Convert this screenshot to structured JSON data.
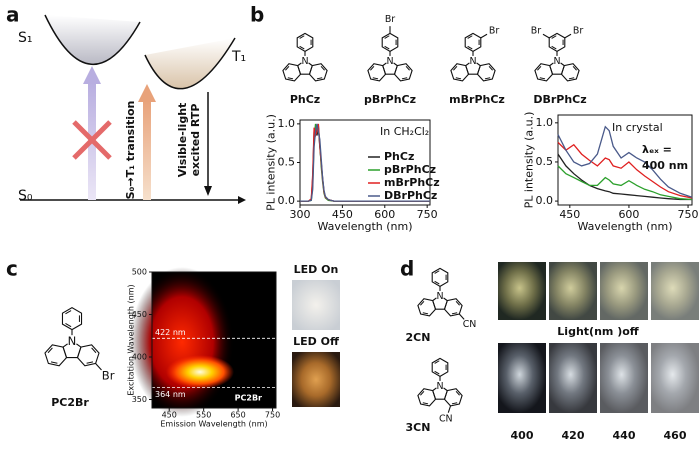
{
  "panel_labels": {
    "a": "a",
    "b": "b",
    "c": "c",
    "d": "d"
  },
  "atom_label": "N",
  "panel_a": {
    "s1": "S₁",
    "t1": "T₁",
    "s0": "S₀",
    "transition": "S₀→T₁ transition",
    "rtp": [
      "Visible-light",
      "excited RTP"
    ]
  },
  "panel_b": {
    "molecules": [
      {
        "name": "PhCz",
        "substituents": []
      },
      {
        "name": "pBrPhCz",
        "substituents": [
          "Br"
        ]
      },
      {
        "name": "mBrPhCz",
        "substituents": [
          "Br"
        ]
      },
      {
        "name": "DBrPhCz",
        "substituents": [
          "Br",
          "Br"
        ]
      }
    ]
  },
  "panel_c": {
    "molecule": {
      "name": "PC2Br",
      "substituents": [
        "Br"
      ]
    },
    "photo_labels": [
      "LED On",
      "LED Off"
    ]
  },
  "panel_d": {
    "molecules": [
      {
        "name": "2CN",
        "substituents": [
          "CN"
        ]
      },
      {
        "name": "3CN",
        "substituents": [
          "CN"
        ]
      }
    ],
    "caption": "Light(nm )off",
    "wavelengths": [
      "400",
      "420",
      "440",
      "460"
    ]
  },
  "chart_data": [
    {
      "type": "line",
      "y_label": "PL intensity (a.u.)",
      "x_label": "Wavelength (nm)",
      "annotations": [
        "In CH₂Cl₂"
      ],
      "xlim": [
        300,
        760
      ],
      "xticks": [
        300,
        450,
        600,
        750
      ],
      "ylim": [
        -0.05,
        1.05
      ],
      "yticks": [
        {
          "value": 0,
          "label": "0.0"
        },
        {
          "value": 0.5,
          "label": "0.5"
        },
        {
          "value": 1,
          "label": "1.0"
        }
      ],
      "legend": "lower right",
      "x": [
        300,
        330,
        340,
        345,
        350,
        355,
        360,
        365,
        370,
        375,
        380,
        385,
        390,
        400,
        420,
        450,
        500,
        600,
        760
      ],
      "series": [
        {
          "name": "PhCz",
          "color": "#222222",
          "values": [
            0,
            0,
            0.02,
            0.3,
            0.9,
            0.95,
            0.85,
            0.97,
            0.7,
            0.5,
            0.3,
            0.12,
            0.05,
            0.02,
            0,
            0,
            0,
            0,
            0
          ]
        },
        {
          "name": "pBrPhCz",
          "color": "#2ca02c",
          "values": [
            0,
            0,
            0.01,
            0.2,
            0.8,
            1.0,
            0.9,
            0.95,
            0.75,
            0.45,
            0.25,
            0.1,
            0.04,
            0.01,
            0,
            0,
            0,
            0,
            0
          ]
        },
        {
          "name": "mBrPhCz",
          "color": "#e02020",
          "values": [
            0,
            0,
            0.03,
            0.35,
            0.95,
            0.85,
            0.9,
            1.0,
            0.72,
            0.5,
            0.28,
            0.12,
            0.05,
            0.02,
            0,
            0,
            0,
            0,
            0
          ]
        },
        {
          "name": "DBrPhCz",
          "color": "#4a5a8a",
          "values": [
            0,
            0,
            0.01,
            0.15,
            0.7,
            0.9,
            1.0,
            0.9,
            0.8,
            0.55,
            0.3,
            0.14,
            0.06,
            0.02,
            0,
            0,
            0,
            0,
            0
          ]
        }
      ]
    },
    {
      "type": "line",
      "y_label": "PL intensity (a.u.)",
      "x_label": "Wavelength (nm)",
      "annotations": [
        "In crystal",
        "λₑₓ =",
        "400 nm"
      ],
      "xlim": [
        420,
        760
      ],
      "xticks": [
        450,
        600,
        750
      ],
      "ylim": [
        -0.05,
        1.1
      ],
      "yticks": [
        {
          "value": 0,
          "label": "0.0"
        },
        {
          "value": 0.5,
          "label": "0.5"
        },
        {
          "value": 1,
          "label": "1.0"
        }
      ],
      "x": [
        420,
        440,
        460,
        480,
        500,
        520,
        540,
        550,
        560,
        580,
        600,
        620,
        640,
        660,
        680,
        700,
        730,
        760
      ],
      "series": [
        {
          "color": "#222222",
          "values": [
            0.6,
            0.45,
            0.35,
            0.27,
            0.2,
            0.16,
            0.13,
            0.12,
            0.1,
            0.09,
            0.08,
            0.07,
            0.06,
            0.05,
            0.04,
            0.03,
            0.02,
            0.02
          ]
        },
        {
          "color": "#2ca02c",
          "values": [
            0.45,
            0.35,
            0.3,
            0.25,
            0.2,
            0.2,
            0.3,
            0.27,
            0.22,
            0.2,
            0.26,
            0.2,
            0.15,
            0.12,
            0.08,
            0.06,
            0.03,
            0.02
          ]
        },
        {
          "color": "#e02020",
          "values": [
            0.75,
            0.65,
            0.72,
            0.6,
            0.52,
            0.45,
            0.55,
            0.53,
            0.45,
            0.42,
            0.5,
            0.4,
            0.32,
            0.25,
            0.18,
            0.12,
            0.07,
            0.04
          ]
        },
        {
          "color": "#4a5a8a",
          "values": [
            0.85,
            0.65,
            0.5,
            0.45,
            0.48,
            0.6,
            0.95,
            0.9,
            0.7,
            0.55,
            0.62,
            0.55,
            0.5,
            0.4,
            0.28,
            0.18,
            0.1,
            0.05
          ]
        }
      ]
    },
    {
      "type": "heatmap",
      "y_label": "Excitation Wavelength (nm)",
      "x_label": "Emission Wavelength (nm)",
      "annotations": [
        "PC2Br"
      ],
      "xlim": [
        400,
        760
      ],
      "xticks": [
        450,
        550,
        650,
        750
      ],
      "ylim": [
        340,
        500
      ],
      "yticks": [
        350,
        400,
        450,
        500
      ],
      "lines": [
        {
          "value": 422,
          "label": "422 nm"
        },
        {
          "value": 364,
          "label": "364 nm"
        }
      ]
    }
  ]
}
